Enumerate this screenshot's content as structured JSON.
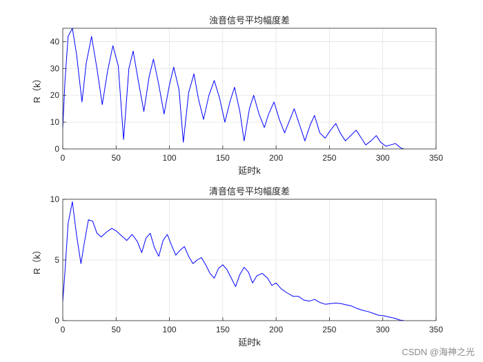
{
  "chart_data": [
    {
      "type": "line",
      "title": "浊音信号平均幅度差",
      "xlabel": "延时k",
      "ylabel": "R（k）",
      "xlim": [
        0,
        350
      ],
      "ylim": [
        0,
        45
      ],
      "xticks": [
        0,
        50,
        100,
        150,
        200,
        250,
        300,
        350
      ],
      "yticks": [
        0,
        10,
        20,
        30,
        40
      ],
      "grid": true,
      "line_color": "#0000ff",
      "series": [
        {
          "x": [
            0,
            2,
            5,
            9,
            13,
            18,
            22,
            27,
            32,
            37,
            42,
            47,
            52,
            57,
            62,
            66,
            71,
            76,
            81,
            85,
            90,
            95,
            100,
            104,
            109,
            113,
            118,
            123,
            127,
            132,
            137,
            142,
            147,
            152,
            157,
            161,
            166,
            170,
            175,
            179,
            184,
            189,
            193,
            198,
            203,
            208,
            213,
            217,
            222,
            227,
            232,
            236,
            241,
            246,
            251,
            256,
            260,
            265,
            270,
            275,
            280,
            284,
            289,
            294,
            298,
            303,
            307,
            312,
            317,
            320
          ],
          "y": [
            8,
            25,
            42,
            45,
            35,
            17.5,
            32,
            42,
            30,
            16.5,
            29,
            38.5,
            31,
            3.5,
            30,
            36.5,
            25,
            14,
            27,
            33.5,
            24,
            13,
            24,
            30.5,
            22,
            2.5,
            21,
            28,
            19,
            11,
            20,
            25.5,
            19,
            10,
            18,
            23,
            14,
            3,
            15,
            20,
            13,
            8,
            13,
            17.5,
            11,
            6,
            11,
            15,
            9,
            3,
            9,
            12.5,
            6,
            4,
            7,
            9.5,
            6,
            3,
            5,
            7,
            4,
            1.5,
            3,
            5,
            2.5,
            1,
            1.5,
            2,
            0.3,
            0
          ]
        }
      ]
    },
    {
      "type": "line",
      "title": "清音信号平均幅度差",
      "xlabel": "延时k",
      "ylabel": "R（k）",
      "xlim": [
        0,
        350
      ],
      "ylim": [
        0,
        10
      ],
      "xticks": [
        0,
        50,
        100,
        150,
        200,
        250,
        300,
        350
      ],
      "yticks": [
        0,
        5,
        10
      ],
      "grid": true,
      "line_color": "#0000ff",
      "series": [
        {
          "x": [
            0,
            2,
            5,
            9,
            13,
            17,
            20,
            24,
            28,
            32,
            36,
            41,
            46,
            50,
            55,
            60,
            65,
            70,
            74,
            78,
            82,
            86,
            90,
            94,
            98,
            102,
            106,
            110,
            114,
            118,
            122,
            126,
            130,
            134,
            138,
            142,
            146,
            150,
            154,
            158,
            162,
            166,
            170,
            174,
            178,
            182,
            187,
            192,
            196,
            200,
            205,
            210,
            216,
            221,
            226,
            231,
            236,
            241,
            246,
            251,
            256,
            261,
            266,
            271,
            276,
            281,
            286,
            291,
            296,
            301,
            306,
            311,
            316,
            320
          ],
          "y": [
            1.6,
            4,
            8,
            9.8,
            7,
            4.7,
            6.3,
            8.3,
            8.2,
            7.2,
            6.9,
            7.3,
            7.6,
            7.4,
            7,
            6.6,
            7.1,
            6.5,
            5.6,
            6.8,
            7.2,
            6,
            5.3,
            6.6,
            7.1,
            6.2,
            5.4,
            5.8,
            6.1,
            5.3,
            4.7,
            5,
            5.2,
            4.6,
            3.9,
            3.5,
            4.3,
            4.6,
            4.2,
            3.5,
            2.8,
            3.8,
            4.4,
            4,
            3.1,
            3.7,
            3.9,
            3.5,
            2.9,
            3.1,
            2.6,
            2.3,
            2.0,
            2.0,
            1.7,
            1.6,
            1.75,
            1.5,
            1.35,
            1.4,
            1.45,
            1.4,
            1.3,
            1.2,
            1.0,
            0.85,
            0.75,
            0.6,
            0.45,
            0.4,
            0.3,
            0.2,
            0.05,
            0
          ]
        }
      ]
    }
  ],
  "watermark": "CSDN @海神之光"
}
